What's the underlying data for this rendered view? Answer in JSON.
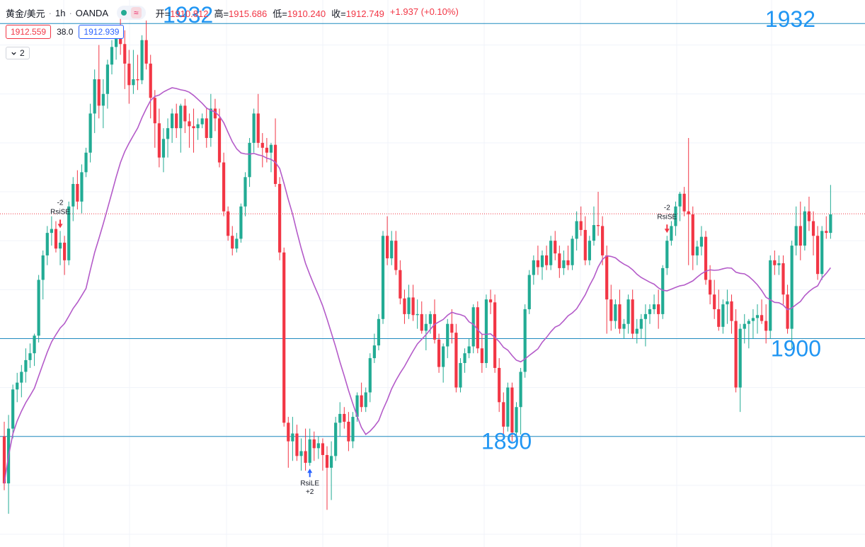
{
  "header": {
    "symbol": "黄金/美元",
    "interval": "1h",
    "broker": "OANDA",
    "wave_icon": "≈",
    "open_label": "开=",
    "open_value": "1910.812",
    "high_label": "高=",
    "high_value": "1915.686",
    "low_label": "低=",
    "low_value": "1910.240",
    "close_label": "收=",
    "close_value": "1912.749",
    "change": "+1.937 (+0.10%)"
  },
  "quote": {
    "bid": "1912.559",
    "spread": "38.0",
    "ask": "1912.939"
  },
  "indicators_toggle": {
    "icon": "chevron-down-icon",
    "count": "2"
  },
  "colors": {
    "up": "#22ab94",
    "down": "#f23645",
    "ma": "#b45bc9",
    "level": "#1f8bbf",
    "level_text": "#2196f3",
    "grid": "#f0f3fa"
  },
  "chart_data": {
    "type": "candlestick",
    "price_range": [
      1878.7,
      1934.6
    ],
    "horizontal_levels": [
      {
        "price": 1932.2,
        "labels": [
          "1932",
          "1932"
        ]
      },
      {
        "price": 1900.0,
        "labels": [
          "1900"
        ]
      },
      {
        "price": 1890.0,
        "labels": [
          "1890"
        ]
      }
    ],
    "current_price_line": 1912.75,
    "signals": [
      {
        "type": "short",
        "label": "RsiSE",
        "qty": "-2",
        "bar": 13
      },
      {
        "type": "long",
        "label": "RsiLE",
        "qty": "+2",
        "bar": 71
      },
      {
        "type": "short",
        "label": "RsiSE",
        "qty": "-2",
        "bar": 154
      }
    ],
    "ohlc": [
      [
        1890.0,
        1891.5,
        1884.5,
        1885.2
      ],
      [
        1885.2,
        1892.2,
        1882.1,
        1890.8
      ],
      [
        1890.8,
        1895.3,
        1889.8,
        1894.8
      ],
      [
        1894.8,
        1896.5,
        1893.5,
        1895.5
      ],
      [
        1895.5,
        1897.3,
        1894.0,
        1896.6
      ],
      [
        1896.6,
        1899.0,
        1895.5,
        1897.8
      ],
      [
        1897.8,
        1899.5,
        1897.0,
        1898.5
      ],
      [
        1898.5,
        1900.5,
        1897.2,
        1900.3
      ],
      [
        1900.3,
        1906.5,
        1899.6,
        1906.0
      ],
      [
        1906.0,
        1909.0,
        1904.0,
        1908.5
      ],
      [
        1908.5,
        1911.5,
        1907.5,
        1910.8
      ],
      [
        1910.8,
        1912.5,
        1909.5,
        1911.2
      ],
      [
        1911.2,
        1912.0,
        1908.8,
        1909.2
      ],
      [
        1909.2,
        1911.0,
        1907.5,
        1909.8
      ],
      [
        1909.8,
        1910.5,
        1906.5,
        1908.0
      ],
      [
        1908.0,
        1914.0,
        1907.5,
        1913.5
      ],
      [
        1913.5,
        1916.5,
        1912.0,
        1915.8
      ],
      [
        1915.8,
        1917.2,
        1913.2,
        1914.0
      ],
      [
        1914.0,
        1917.8,
        1912.8,
        1917.0
      ],
      [
        1917.0,
        1919.5,
        1916.5,
        1919.0
      ],
      [
        1919.0,
        1924.0,
        1918.0,
        1923.0
      ],
      [
        1923.0,
        1927.5,
        1921.0,
        1926.5
      ],
      [
        1926.5,
        1930.0,
        1922.5,
        1923.8
      ],
      [
        1923.8,
        1926.5,
        1921.5,
        1925.0
      ],
      [
        1925.0,
        1928.5,
        1923.5,
        1928.0
      ],
      [
        1928.0,
        1930.5,
        1927.0,
        1929.8
      ],
      [
        1929.8,
        1931.5,
        1928.5,
        1930.9
      ],
      [
        1930.9,
        1933.0,
        1929.0,
        1930.1
      ],
      [
        1930.1,
        1931.5,
        1925.5,
        1928.1
      ],
      [
        1928.1,
        1929.5,
        1924.0,
        1925.9
      ],
      [
        1925.9,
        1929.5,
        1925.0,
        1926.5
      ],
      [
        1926.5,
        1929.0,
        1925.4,
        1926.4
      ],
      [
        1926.4,
        1931.0,
        1926.0,
        1930.5
      ],
      [
        1930.5,
        1932.5,
        1927.5,
        1928.1
      ],
      [
        1928.1,
        1929.0,
        1922.5,
        1924.6
      ],
      [
        1924.6,
        1925.4,
        1919.5,
        1922.0
      ],
      [
        1922.0,
        1923.5,
        1917.5,
        1918.5
      ],
      [
        1918.5,
        1921.5,
        1917.0,
        1920.4
      ],
      [
        1920.4,
        1922.5,
        1918.5,
        1921.5
      ],
      [
        1921.5,
        1923.5,
        1920.0,
        1923.0
      ],
      [
        1923.0,
        1924.0,
        1920.5,
        1921.5
      ],
      [
        1921.5,
        1924.0,
        1919.0,
        1923.8
      ],
      [
        1923.8,
        1924.5,
        1921.0,
        1922.2
      ],
      [
        1922.2,
        1923.0,
        1919.5,
        1921.7
      ],
      [
        1921.7,
        1923.5,
        1919.0,
        1921.5
      ],
      [
        1921.5,
        1922.5,
        1920.3,
        1921.9
      ],
      [
        1921.9,
        1923.0,
        1921.5,
        1922.5
      ],
      [
        1922.5,
        1923.5,
        1919.5,
        1920.5
      ],
      [
        1920.5,
        1925.0,
        1919.6,
        1923.5
      ],
      [
        1923.5,
        1924.5,
        1921.2,
        1922.5
      ],
      [
        1922.5,
        1923.5,
        1917.5,
        1918.0
      ],
      [
        1918.0,
        1919.0,
        1912.5,
        1913.0
      ],
      [
        1913.0,
        1913.5,
        1910.0,
        1910.5
      ],
      [
        1910.5,
        1911.5,
        1908.5,
        1909.2
      ],
      [
        1909.2,
        1910.8,
        1908.8,
        1910.2
      ],
      [
        1910.2,
        1913.8,
        1909.8,
        1913.5
      ],
      [
        1913.5,
        1917.0,
        1912.5,
        1916.5
      ],
      [
        1916.5,
        1920.5,
        1915.5,
        1920.0
      ],
      [
        1920.0,
        1923.5,
        1919.0,
        1923.0
      ],
      [
        1923.0,
        1925.0,
        1919.5,
        1920.0
      ],
      [
        1920.0,
        1921.0,
        1917.5,
        1919.5
      ],
      [
        1919.5,
        1920.5,
        1918.0,
        1919.0
      ],
      [
        1919.0,
        1920.0,
        1917.0,
        1919.8
      ],
      [
        1919.8,
        1922.5,
        1915.5,
        1915.8
      ],
      [
        1915.8,
        1916.5,
        1908.0,
        1908.8
      ],
      [
        1908.8,
        1909.3,
        1891.0,
        1891.4
      ],
      [
        1891.4,
        1892.0,
        1886.8,
        1889.5
      ],
      [
        1889.5,
        1892.0,
        1887.5,
        1890.3
      ],
      [
        1890.3,
        1891.2,
        1887.5,
        1888.0
      ],
      [
        1888.0,
        1889.8,
        1886.5,
        1888.5
      ],
      [
        1888.5,
        1890.8,
        1886.5,
        1887.3
      ],
      [
        1887.3,
        1890.8,
        1887.0,
        1889.7
      ],
      [
        1889.7,
        1890.5,
        1887.5,
        1888.8
      ],
      [
        1888.8,
        1890.0,
        1887.7,
        1889.3
      ],
      [
        1889.3,
        1889.8,
        1886.5,
        1888.1
      ],
      [
        1888.1,
        1889.0,
        1882.5,
        1886.8
      ],
      [
        1886.8,
        1889.5,
        1883.5,
        1888.0
      ],
      [
        1888.0,
        1892.0,
        1887.5,
        1891.4
      ],
      [
        1891.4,
        1893.5,
        1890.0,
        1892.3
      ],
      [
        1892.3,
        1893.0,
        1890.8,
        1891.5
      ],
      [
        1891.5,
        1892.5,
        1888.5,
        1889.5
      ],
      [
        1889.5,
        1892.5,
        1888.8,
        1892.0
      ],
      [
        1892.0,
        1894.5,
        1891.5,
        1894.2
      ],
      [
        1894.2,
        1895.5,
        1892.5,
        1893.0
      ],
      [
        1893.0,
        1895.0,
        1892.5,
        1894.5
      ],
      [
        1894.5,
        1898.5,
        1893.5,
        1898.0
      ],
      [
        1898.0,
        1900.5,
        1897.5,
        1899.3
      ],
      [
        1899.3,
        1902.5,
        1898.8,
        1902.0
      ],
      [
        1902.0,
        1911.0,
        1901.5,
        1910.5
      ],
      [
        1910.5,
        1912.5,
        1907.5,
        1908.2
      ],
      [
        1908.2,
        1911.0,
        1907.5,
        1910.0
      ],
      [
        1910.0,
        1911.0,
        1906.5,
        1907.0
      ],
      [
        1907.0,
        1908.0,
        1903.5,
        1904.1
      ],
      [
        1904.1,
        1905.0,
        1901.5,
        1902.5
      ],
      [
        1902.5,
        1905.5,
        1902.0,
        1904.2
      ],
      [
        1904.2,
        1905.5,
        1901.8,
        1902.4
      ],
      [
        1902.4,
        1904.0,
        1901.0,
        1902.5
      ],
      [
        1902.5,
        1903.8,
        1900.5,
        1900.8
      ],
      [
        1900.8,
        1902.5,
        1898.8,
        1901.5
      ],
      [
        1901.5,
        1902.8,
        1900.5,
        1902.5
      ],
      [
        1902.5,
        1904.0,
        1899.5,
        1899.9
      ],
      [
        1899.9,
        1900.5,
        1896.5,
        1897.1
      ],
      [
        1897.1,
        1899.5,
        1895.5,
        1899.2
      ],
      [
        1899.2,
        1902.0,
        1898.0,
        1901.5
      ],
      [
        1901.5,
        1903.0,
        1899.5,
        1900.6
      ],
      [
        1900.6,
        1901.5,
        1894.5,
        1895.0
      ],
      [
        1895.0,
        1898.0,
        1894.5,
        1897.5
      ],
      [
        1897.5,
        1899.0,
        1896.5,
        1898.5
      ],
      [
        1898.5,
        1900.0,
        1898.0,
        1899.2
      ],
      [
        1899.2,
        1903.5,
        1898.5,
        1903.2
      ],
      [
        1903.2,
        1903.8,
        1898.5,
        1899.0
      ],
      [
        1899.0,
        1900.5,
        1896.5,
        1897.5
      ],
      [
        1897.5,
        1904.5,
        1897.0,
        1904.0
      ],
      [
        1904.0,
        1905.0,
        1902.5,
        1903.7
      ],
      [
        1903.7,
        1904.5,
        1896.5,
        1897.0
      ],
      [
        1897.0,
        1898.0,
        1892.5,
        1893.5
      ],
      [
        1893.5,
        1894.5,
        1890.0,
        1891.0
      ],
      [
        1891.0,
        1895.5,
        1890.5,
        1895.0
      ],
      [
        1895.0,
        1895.5,
        1889.5,
        1890.4
      ],
      [
        1890.4,
        1893.5,
        1890.0,
        1893.0
      ],
      [
        1893.0,
        1897.0,
        1890.2,
        1896.6
      ],
      [
        1896.6,
        1903.5,
        1896.0,
        1903.0
      ],
      [
        1903.0,
        1907.0,
        1902.5,
        1906.5
      ],
      [
        1906.5,
        1908.5,
        1905.5,
        1908.0
      ],
      [
        1908.0,
        1909.5,
        1906.5,
        1907.3
      ],
      [
        1907.3,
        1909.0,
        1906.0,
        1908.5
      ],
      [
        1908.5,
        1909.5,
        1907.0,
        1907.5
      ],
      [
        1907.5,
        1910.5,
        1907.0,
        1910.0
      ],
      [
        1910.0,
        1911.0,
        1908.0,
        1908.7
      ],
      [
        1908.7,
        1909.5,
        1906.2,
        1907.2
      ],
      [
        1907.2,
        1909.0,
        1906.5,
        1908.0
      ],
      [
        1908.0,
        1909.5,
        1907.0,
        1907.5
      ],
      [
        1907.5,
        1910.5,
        1907.0,
        1910.2
      ],
      [
        1910.2,
        1913.0,
        1909.0,
        1912.0
      ],
      [
        1912.0,
        1913.5,
        1910.5,
        1911.1
      ],
      [
        1911.1,
        1912.5,
        1907.5,
        1908.0
      ],
      [
        1908.0,
        1910.5,
        1907.5,
        1910.0
      ],
      [
        1910.0,
        1913.5,
        1909.5,
        1911.6
      ],
      [
        1911.6,
        1915.0,
        1910.5,
        1911.5
      ],
      [
        1911.5,
        1912.5,
        1907.5,
        1908.5
      ],
      [
        1908.5,
        1909.5,
        1900.5,
        1904.0
      ],
      [
        1904.0,
        1905.5,
        1900.8,
        1901.8
      ],
      [
        1901.8,
        1904.0,
        1901.0,
        1903.5
      ],
      [
        1903.5,
        1905.0,
        1900.5,
        1901.0
      ],
      [
        1901.0,
        1902.0,
        1900.0,
        1901.5
      ],
      [
        1901.5,
        1904.5,
        1900.5,
        1904.0
      ],
      [
        1904.0,
        1905.0,
        1900.0,
        1900.5
      ],
      [
        1900.5,
        1902.0,
        1899.5,
        1901.0
      ],
      [
        1901.0,
        1902.5,
        1900.0,
        1902.0
      ],
      [
        1902.0,
        1903.5,
        1899.2,
        1902.5
      ],
      [
        1902.5,
        1903.5,
        1901.5,
        1903.0
      ],
      [
        1903.0,
        1904.5,
        1902.5,
        1903.5
      ],
      [
        1903.5,
        1905.0,
        1901.0,
        1902.5
      ],
      [
        1902.5,
        1907.5,
        1902.0,
        1907.2
      ],
      [
        1907.2,
        1910.5,
        1906.5,
        1910.0
      ],
      [
        1910.0,
        1912.0,
        1909.5,
        1911.5
      ],
      [
        1911.5,
        1914.0,
        1910.5,
        1913.5
      ],
      [
        1913.5,
        1915.0,
        1912.0,
        1914.8
      ],
      [
        1914.8,
        1915.5,
        1912.5,
        1913.0
      ],
      [
        1913.0,
        1920.5,
        1907.5,
        1912.7
      ],
      [
        1912.7,
        1913.5,
        1907.0,
        1908.5
      ],
      [
        1908.5,
        1910.0,
        1907.5,
        1909.4
      ],
      [
        1909.4,
        1911.5,
        1908.5,
        1910.4
      ],
      [
        1910.4,
        1911.0,
        1905.5,
        1906.0
      ],
      [
        1906.0,
        1907.5,
        1903.5,
        1904.5
      ],
      [
        1904.5,
        1906.0,
        1902.0,
        1903.0
      ],
      [
        1903.0,
        1905.0,
        1900.8,
        1901.2
      ],
      [
        1901.2,
        1904.0,
        1900.5,
        1903.5
      ],
      [
        1903.5,
        1905.0,
        1901.5,
        1903.8
      ],
      [
        1903.8,
        1904.5,
        1900.5,
        1901.8
      ],
      [
        1901.8,
        1903.0,
        1894.5,
        1895.0
      ],
      [
        1895.0,
        1901.5,
        1892.5,
        1901.0
      ],
      [
        1901.0,
        1902.5,
        1899.5,
        1901.5
      ],
      [
        1901.5,
        1902.0,
        1899.0,
        1901.8
      ],
      [
        1901.8,
        1903.0,
        1900.0,
        1902.1
      ],
      [
        1902.1,
        1903.5,
        1900.5,
        1902.4
      ],
      [
        1902.4,
        1904.0,
        1901.5,
        1901.8
      ],
      [
        1901.8,
        1903.5,
        1899.5,
        1900.8
      ],
      [
        1900.8,
        1908.5,
        1900.0,
        1908.0
      ],
      [
        1908.0,
        1909.0,
        1906.5,
        1907.5
      ],
      [
        1907.5,
        1908.5,
        1906.5,
        1907.7
      ],
      [
        1907.7,
        1908.5,
        1903.5,
        1904.5
      ],
      [
        1904.5,
        1905.5,
        1900.5,
        1901.0
      ],
      [
        1901.0,
        1910.0,
        1899.0,
        1909.5
      ],
      [
        1909.5,
        1913.5,
        1908.5,
        1911.5
      ],
      [
        1911.5,
        1914.0,
        1908.0,
        1909.5
      ],
      [
        1909.5,
        1913.5,
        1909.0,
        1913.0
      ],
      [
        1913.0,
        1914.5,
        1911.0,
        1912.0
      ],
      [
        1912.0,
        1913.0,
        1908.5,
        1910.5
      ],
      [
        1910.5,
        1911.5,
        1906.0,
        1906.6
      ],
      [
        1906.6,
        1911.5,
        1906.0,
        1911.0
      ],
      [
        1911.0,
        1912.5,
        1910.2,
        1910.8
      ],
      [
        1910.8,
        1915.7,
        1910.2,
        1912.7
      ]
    ]
  }
}
